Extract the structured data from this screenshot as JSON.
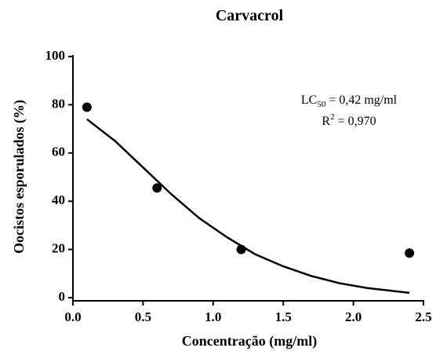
{
  "chart_data": {
    "type": "scatter",
    "title": "Carvacrol",
    "xlabel": "Concentração (mg/ml)",
    "ylabel": "Oocistos esporulados (%)",
    "annotations": [
      {
        "base": "LC",
        "sub": "50",
        "text": " = 0,42 mg/ml"
      },
      {
        "base": "R",
        "sup": "2",
        "text": " = 0,970"
      }
    ],
    "points": {
      "color": "#000000",
      "x": [
        0.1,
        0.6,
        1.2,
        2.4
      ],
      "values": [
        79,
        45.5,
        20,
        18.5
      ]
    },
    "fit": {
      "color": "#000000",
      "x": [
        0.1,
        0.3,
        0.5,
        0.7,
        0.9,
        1.1,
        1.3,
        1.5,
        1.7,
        1.9,
        2.1,
        2.4
      ],
      "values": [
        74,
        65,
        54,
        43,
        33,
        25,
        18,
        13,
        9,
        6,
        4,
        2
      ]
    },
    "xlim": [
      0,
      2.5
    ],
    "ylim": [
      0,
      100
    ],
    "xticks": [
      {
        "value": 0,
        "label": "0.0"
      },
      0.5,
      {
        "value": 1,
        "label": "1.0"
      },
      1.5,
      {
        "value": 2,
        "label": "2.0"
      },
      2.5
    ],
    "yticks": [
      0,
      20,
      40,
      60,
      80,
      100
    ]
  }
}
